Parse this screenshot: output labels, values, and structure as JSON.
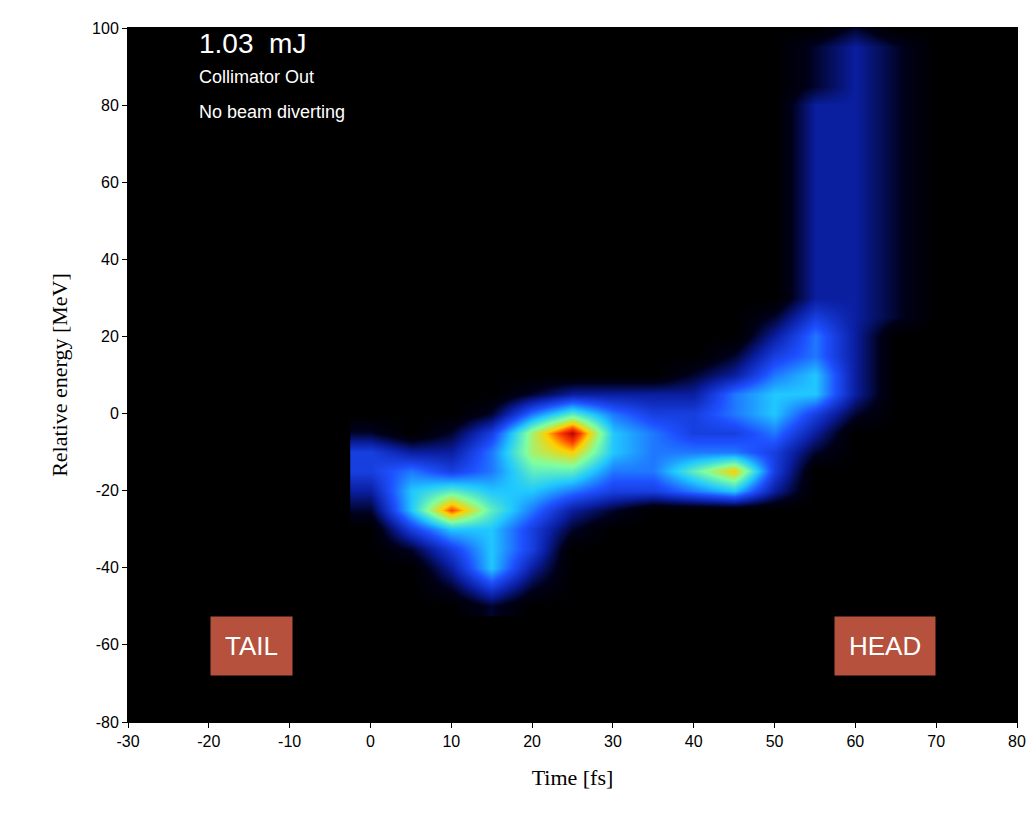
{
  "chart_data": {
    "type": "heatmap",
    "x_label": "Time [fs]",
    "y_label": "Relative energy [MeV]",
    "annotations": [
      "1.03  mJ",
      "Collimator Out",
      "No beam diverting",
      "TAIL",
      "HEAD"
    ],
    "xlim": [
      -30,
      80
    ],
    "xticks": [
      -30,
      -20,
      -10,
      0,
      10,
      20,
      30,
      40,
      50,
      60,
      70,
      80
    ],
    "ylim": [
      -80,
      100
    ],
    "yticks": [
      -80,
      -60,
      -40,
      -20,
      0,
      20,
      40,
      60,
      80,
      100
    ],
    "x": [
      0,
      5,
      10,
      15,
      20,
      25,
      30,
      35,
      40,
      45,
      50,
      55,
      60,
      65,
      70
    ],
    "y": [
      -50,
      -45,
      -40,
      -35,
      -30,
      -25,
      -20,
      -15,
      -10,
      -5,
      0,
      5,
      10,
      15,
      20,
      25,
      30,
      35,
      40,
      45,
      50,
      55,
      60,
      65,
      70,
      75,
      80,
      85,
      90,
      95,
      100
    ],
    "z": [
      [
        0,
        0,
        0,
        1,
        0,
        0,
        0,
        0,
        0,
        0,
        0,
        0,
        0,
        0,
        0
      ],
      [
        0,
        0,
        1,
        3,
        1,
        0,
        0,
        0,
        0,
        0,
        0,
        0,
        0,
        0,
        0
      ],
      [
        0,
        0,
        2,
        5,
        2,
        0,
        0,
        0,
        0,
        0,
        0,
        0,
        0,
        0,
        0
      ],
      [
        0,
        1,
        3,
        5,
        3,
        0,
        0,
        0,
        0,
        0,
        0,
        0,
        0,
        0,
        0
      ],
      [
        0,
        3,
        5,
        5,
        3,
        1,
        0,
        0,
        0,
        0,
        0,
        0,
        0,
        0,
        0
      ],
      [
        1,
        5,
        9,
        6,
        4,
        2,
        1,
        0,
        0,
        0,
        0,
        0,
        0,
        0,
        0
      ],
      [
        2,
        5,
        6,
        5,
        5,
        4,
        3,
        3,
        4,
        5,
        2,
        0,
        0,
        0,
        0
      ],
      [
        3,
        4,
        3,
        4,
        6,
        6,
        4,
        4,
        6,
        8,
        3,
        0,
        0,
        0,
        0
      ],
      [
        3,
        2,
        2,
        4,
        7,
        8,
        5,
        4,
        4,
        4,
        3,
        1,
        0,
        0,
        0
      ],
      [
        1,
        0,
        1,
        3,
        7,
        10,
        5,
        4,
        3,
        3,
        4,
        2,
        0,
        0,
        0
      ],
      [
        0,
        0,
        0,
        1,
        4,
        6,
        4,
        3,
        3,
        4,
        5,
        3,
        1,
        0,
        0
      ],
      [
        0,
        0,
        0,
        0,
        1,
        2,
        2,
        2,
        2,
        4,
        5,
        5,
        2,
        0,
        0
      ],
      [
        0,
        0,
        0,
        0,
        0,
        0,
        0,
        0,
        1,
        2,
        4,
        5,
        2,
        0,
        0
      ],
      [
        0,
        0,
        0,
        0,
        0,
        0,
        0,
        0,
        0,
        1,
        3,
        4,
        2,
        0,
        0
      ],
      [
        0,
        0,
        0,
        0,
        0,
        0,
        0,
        0,
        0,
        0,
        2,
        4,
        2,
        0,
        0
      ],
      [
        0,
        0,
        0,
        0,
        0,
        0,
        0,
        0,
        0,
        0,
        1,
        3,
        2,
        1,
        0
      ],
      [
        0,
        0,
        0,
        0,
        0,
        0,
        0,
        0,
        0,
        0,
        0,
        2,
        2,
        1,
        0
      ],
      [
        0,
        0,
        0,
        0,
        0,
        0,
        0,
        0,
        0,
        0,
        0,
        2,
        2,
        1,
        0
      ],
      [
        0,
        0,
        0,
        0,
        0,
        0,
        0,
        0,
        0,
        0,
        0,
        2,
        2,
        1,
        0
      ],
      [
        0,
        0,
        0,
        0,
        0,
        0,
        0,
        0,
        0,
        0,
        0,
        2,
        2,
        1,
        0
      ],
      [
        0,
        0,
        0,
        0,
        0,
        0,
        0,
        0,
        0,
        0,
        0,
        2,
        2,
        1,
        0
      ],
      [
        0,
        0,
        0,
        0,
        0,
        0,
        0,
        0,
        0,
        0,
        0,
        2,
        2,
        1,
        0
      ],
      [
        0,
        0,
        0,
        0,
        0,
        0,
        0,
        0,
        0,
        0,
        0,
        2,
        2,
        1,
        0
      ],
      [
        0,
        0,
        0,
        0,
        0,
        0,
        0,
        0,
        0,
        0,
        0,
        2,
        2,
        1,
        0
      ],
      [
        0,
        0,
        0,
        0,
        0,
        0,
        0,
        0,
        0,
        0,
        0,
        2,
        2,
        1,
        0
      ],
      [
        0,
        0,
        0,
        0,
        0,
        0,
        0,
        0,
        0,
        0,
        0,
        2,
        2,
        1,
        0
      ],
      [
        0,
        0,
        0,
        0,
        0,
        0,
        0,
        0,
        0,
        0,
        0,
        2,
        2,
        1,
        0
      ],
      [
        0,
        0,
        0,
        0,
        0,
        0,
        0,
        0,
        0,
        0,
        0,
        1,
        2,
        1,
        0
      ],
      [
        0,
        0,
        0,
        0,
        0,
        0,
        0,
        0,
        0,
        0,
        0,
        1,
        2,
        1,
        0
      ],
      [
        0,
        0,
        0,
        0,
        0,
        0,
        0,
        0,
        0,
        0,
        0,
        1,
        2,
        1,
        0
      ],
      [
        0,
        0,
        0,
        0,
        0,
        0,
        0,
        0,
        0,
        0,
        0,
        0,
        1,
        0,
        0
      ]
    ]
  }
}
